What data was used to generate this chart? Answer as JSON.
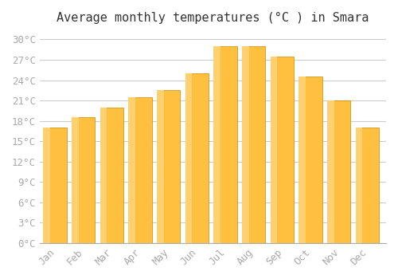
{
  "months": [
    "Jan",
    "Feb",
    "Mar",
    "Apr",
    "May",
    "Jun",
    "Jul",
    "Aug",
    "Sep",
    "Oct",
    "Nov",
    "Dec"
  ],
  "temperatures": [
    17.0,
    18.5,
    20.0,
    21.5,
    22.5,
    25.0,
    29.0,
    29.0,
    27.5,
    24.5,
    21.0,
    17.0
  ],
  "bar_color": "#FFA500",
  "bar_edge_color": "#CC8800",
  "bar_face_color_top": "#FFD080",
  "title": "Average monthly temperatures (°C ) in Smara",
  "ylim": [
    0,
    31
  ],
  "yticks": [
    0,
    3,
    6,
    9,
    12,
    15,
    18,
    21,
    24,
    27,
    30
  ],
  "ytick_labels": [
    "0°C",
    "3°C",
    "6°C",
    "9°C",
    "12°C",
    "15°C",
    "18°C",
    "21°C",
    "24°C",
    "27°C",
    "30°C"
  ],
  "background_color": "#ffffff",
  "grid_color": "#cccccc",
  "title_fontsize": 11,
  "tick_fontsize": 9,
  "title_font": "monospace",
  "tick_font": "monospace"
}
